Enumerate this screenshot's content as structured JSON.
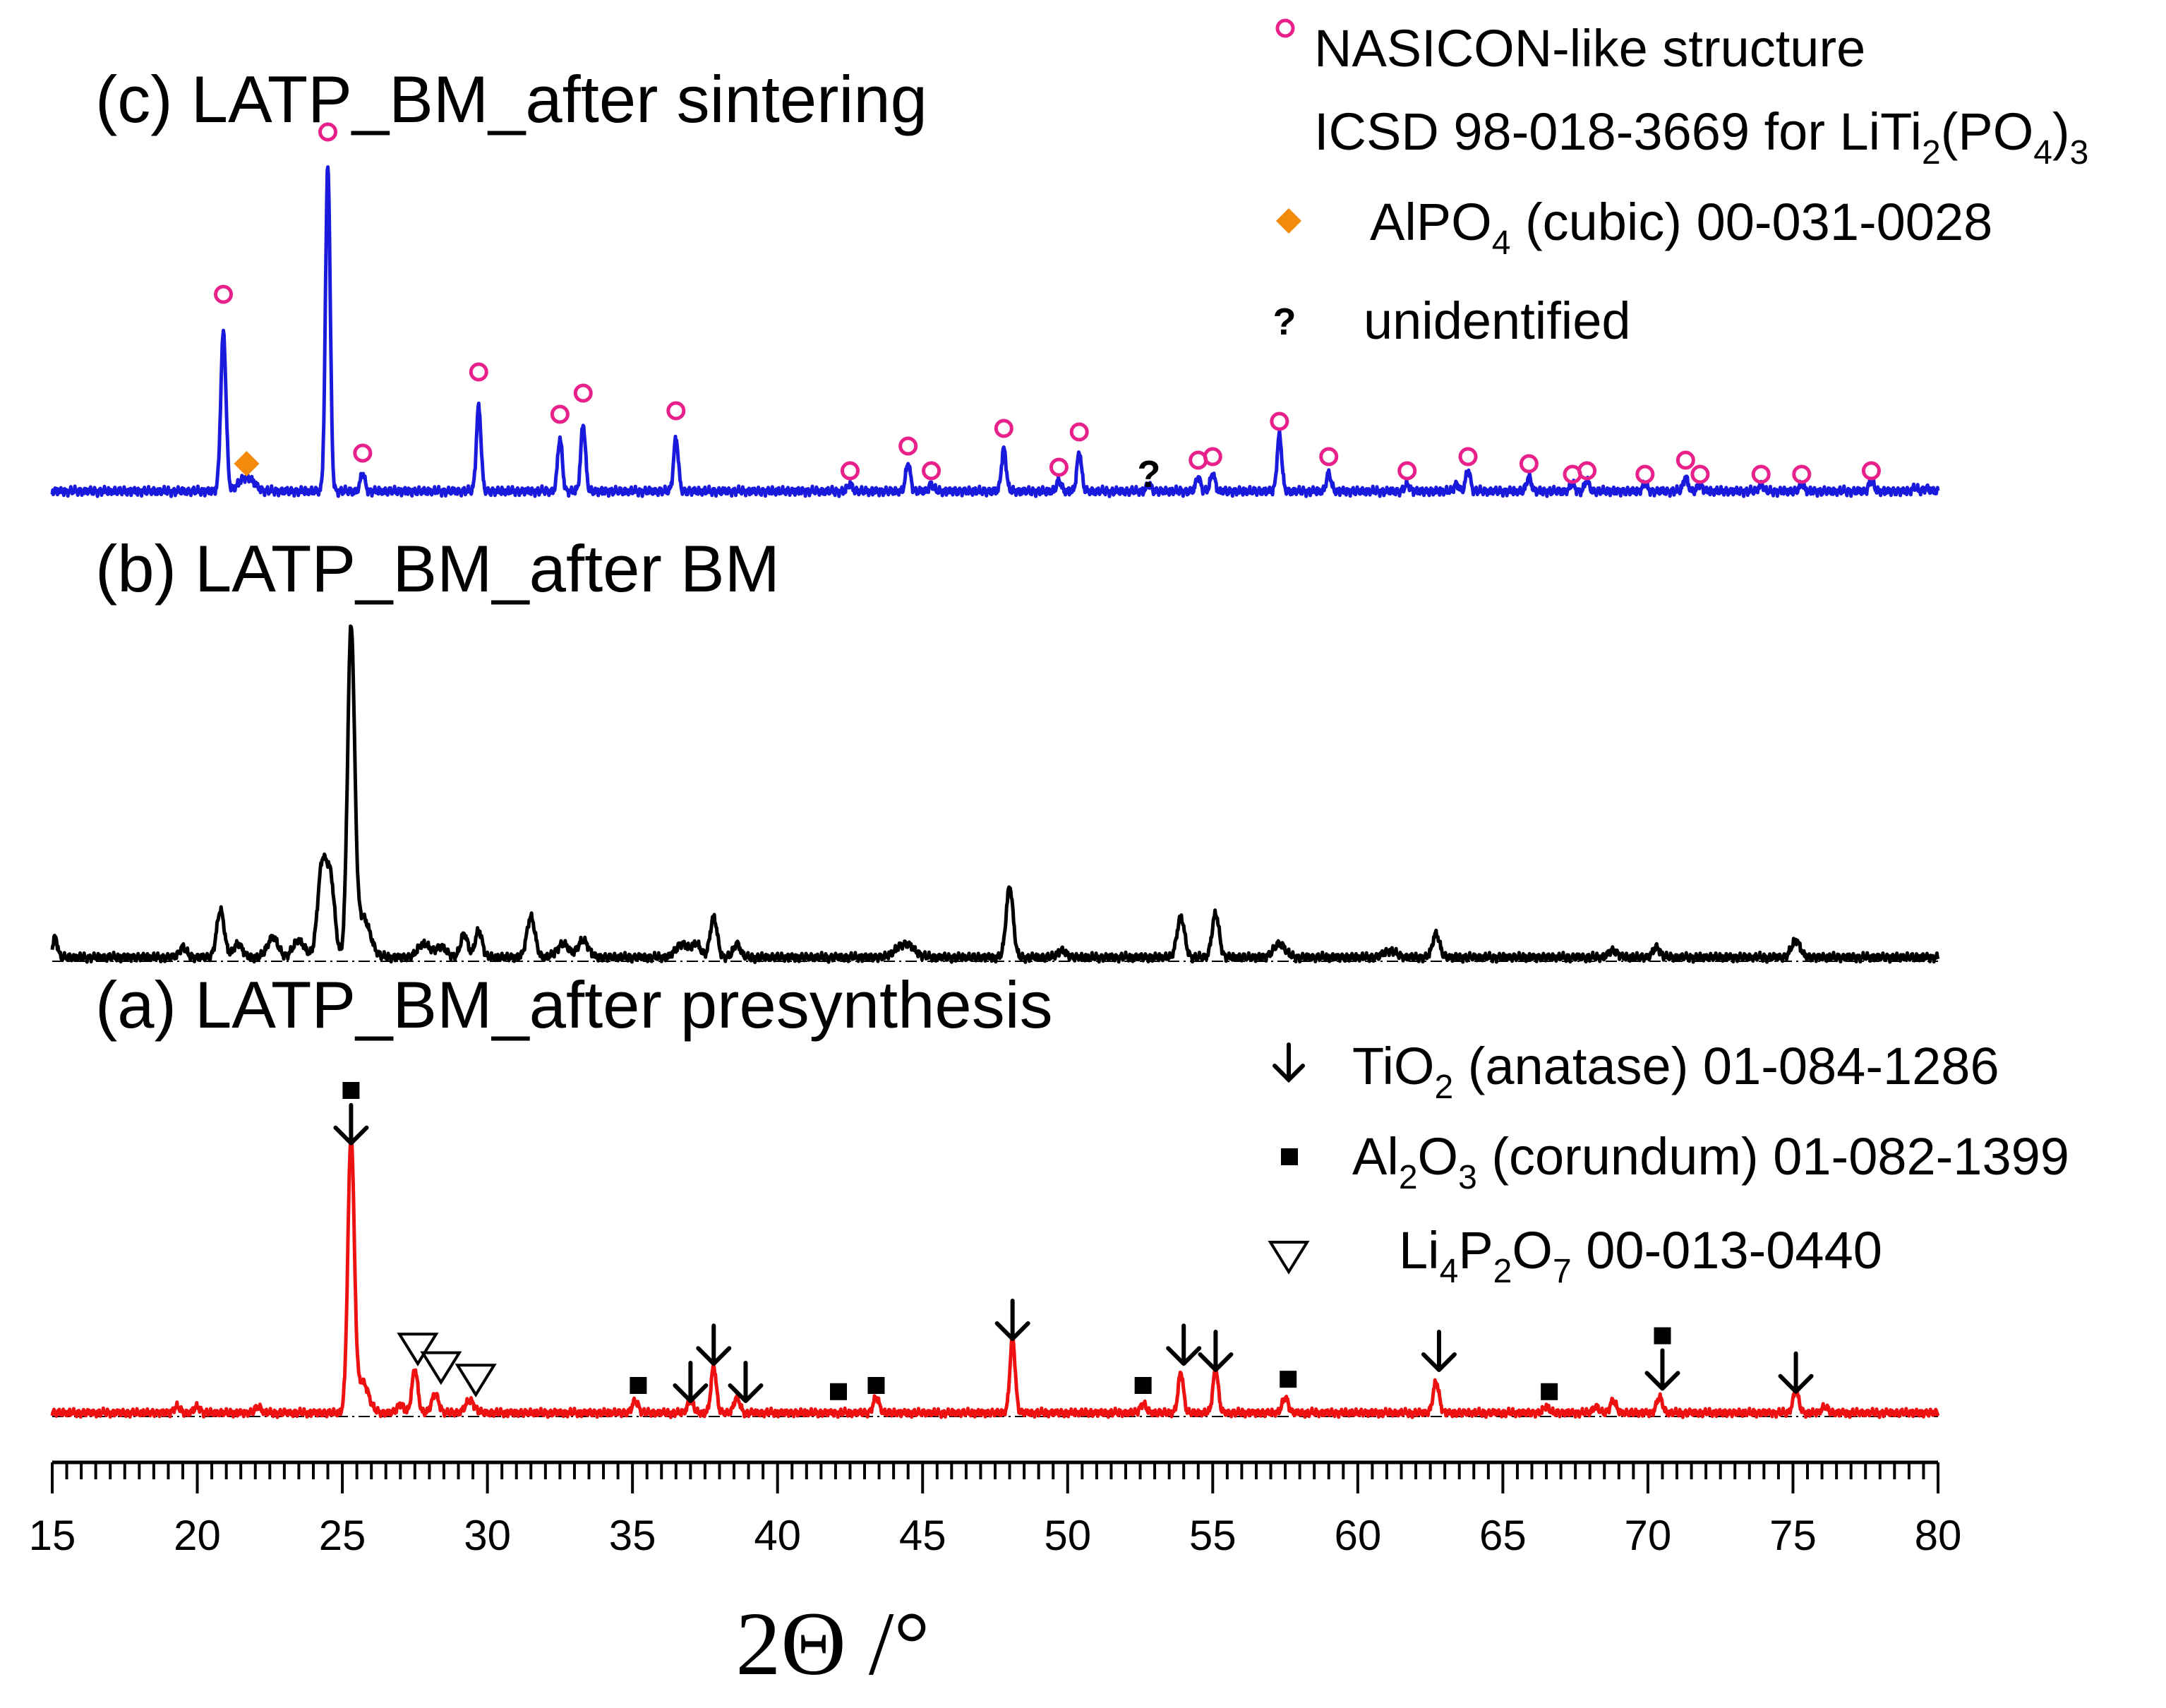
{
  "chart_data": {
    "type": "line",
    "title": "",
    "xlabel": "2Θ /°",
    "ylabel": "",
    "xlim": [
      15,
      80
    ],
    "xticks": [
      15,
      20,
      25,
      30,
      35,
      40,
      45,
      50,
      55,
      60,
      65,
      70,
      75,
      80
    ],
    "colors": {
      "c": "#1a1adc",
      "b": "#000000",
      "a": "#ee1111",
      "nasicon": "#e8208a",
      "alpo4": "#f28a0c"
    },
    "panels": [
      {
        "key": "c",
        "title": "(c) LATP_BM_after sintering",
        "color": "#1a1adc",
        "peaks": [
          {
            "x": 20.9,
            "h": 0.45,
            "w": 0.09
          },
          {
            "x": 21.7,
            "h": 0.04,
            "w": 0.25
          },
          {
            "x": 24.5,
            "h": 0.93,
            "w": 0.08
          },
          {
            "x": 25.7,
            "h": 0.05,
            "w": 0.08
          },
          {
            "x": 29.7,
            "h": 0.24,
            "w": 0.08
          },
          {
            "x": 32.5,
            "h": 0.15,
            "w": 0.08
          },
          {
            "x": 33.3,
            "h": 0.19,
            "w": 0.08
          },
          {
            "x": 36.5,
            "h": 0.15,
            "w": 0.08
          },
          {
            "x": 42.5,
            "h": 0.02,
            "w": 0.08
          },
          {
            "x": 44.5,
            "h": 0.08,
            "w": 0.08
          },
          {
            "x": 45.3,
            "h": 0.02,
            "w": 0.08
          },
          {
            "x": 47.8,
            "h": 0.12,
            "w": 0.08
          },
          {
            "x": 49.7,
            "h": 0.03,
            "w": 0.08
          },
          {
            "x": 50.4,
            "h": 0.11,
            "w": 0.08
          },
          {
            "x": 52.8,
            "h": 0.02,
            "w": 0.08
          },
          {
            "x": 54.5,
            "h": 0.04,
            "w": 0.08
          },
          {
            "x": 55.0,
            "h": 0.05,
            "w": 0.08
          },
          {
            "x": 57.3,
            "h": 0.16,
            "w": 0.08
          },
          {
            "x": 59.0,
            "h": 0.05,
            "w": 0.08
          },
          {
            "x": 61.7,
            "h": 0.02,
            "w": 0.08
          },
          {
            "x": 63.4,
            "h": 0.02,
            "w": 0.08
          },
          {
            "x": 63.8,
            "h": 0.06,
            "w": 0.08
          },
          {
            "x": 65.9,
            "h": 0.04,
            "w": 0.08
          },
          {
            "x": 67.4,
            "h": 0.02,
            "w": 0.08
          },
          {
            "x": 67.9,
            "h": 0.03,
            "w": 0.08
          },
          {
            "x": 69.9,
            "h": 0.02,
            "w": 0.08
          },
          {
            "x": 71.3,
            "h": 0.04,
            "w": 0.08
          },
          {
            "x": 71.8,
            "h": 0.02,
            "w": 0.08
          },
          {
            "x": 73.9,
            "h": 0.02,
            "w": 0.08
          },
          {
            "x": 75.3,
            "h": 0.02,
            "w": 0.08
          },
          {
            "x": 77.7,
            "h": 0.03,
            "w": 0.08
          },
          {
            "x": 79.2,
            "h": 0.01,
            "w": 0.08
          },
          {
            "x": 79.6,
            "h": 0.01,
            "w": 0.08
          }
        ],
        "markers": [
          {
            "x": 20.9,
            "t": "nasicon",
            "y": 0.57
          },
          {
            "x": 21.7,
            "t": "alpo4",
            "y": 0.09
          },
          {
            "x": 24.5,
            "t": "nasicon",
            "y": 1.03
          },
          {
            "x": 25.7,
            "t": "nasicon",
            "y": 0.12
          },
          {
            "x": 29.7,
            "t": "nasicon",
            "y": 0.35
          },
          {
            "x": 32.5,
            "t": "nasicon",
            "y": 0.23
          },
          {
            "x": 33.3,
            "t": "nasicon",
            "y": 0.29
          },
          {
            "x": 36.5,
            "t": "nasicon",
            "y": 0.24
          },
          {
            "x": 42.5,
            "t": "nasicon",
            "y": 0.07
          },
          {
            "x": 44.5,
            "t": "nasicon",
            "y": 0.14
          },
          {
            "x": 45.3,
            "t": "nasicon",
            "y": 0.07
          },
          {
            "x": 47.8,
            "t": "nasicon",
            "y": 0.19
          },
          {
            "x": 49.7,
            "t": "nasicon",
            "y": 0.08
          },
          {
            "x": 50.4,
            "t": "nasicon",
            "y": 0.18
          },
          {
            "x": 52.8,
            "t": "unidentified",
            "y": 0.06
          },
          {
            "x": 54.5,
            "t": "nasicon",
            "y": 0.1
          },
          {
            "x": 55.0,
            "t": "nasicon",
            "y": 0.11
          },
          {
            "x": 57.3,
            "t": "nasicon",
            "y": 0.21
          },
          {
            "x": 59.0,
            "t": "nasicon",
            "y": 0.11
          },
          {
            "x": 61.7,
            "t": "nasicon",
            "y": 0.07
          },
          {
            "x": 63.8,
            "t": "nasicon",
            "y": 0.11
          },
          {
            "x": 65.9,
            "t": "nasicon",
            "y": 0.09
          },
          {
            "x": 67.4,
            "t": "nasicon",
            "y": 0.06
          },
          {
            "x": 67.9,
            "t": "nasicon",
            "y": 0.07
          },
          {
            "x": 69.9,
            "t": "nasicon",
            "y": 0.06
          },
          {
            "x": 71.3,
            "t": "nasicon",
            "y": 0.1
          },
          {
            "x": 71.8,
            "t": "nasicon",
            "y": 0.06
          },
          {
            "x": 73.9,
            "t": "nasicon",
            "y": 0.06
          },
          {
            "x": 75.3,
            "t": "nasicon",
            "y": 0.06
          },
          {
            "x": 77.7,
            "t": "nasicon",
            "y": 0.07
          }
        ]
      },
      {
        "key": "b",
        "title": "(b) LATP_BM_after BM",
        "color": "#000000",
        "peaks": [
          {
            "x": 15.1,
            "h": 0.06,
            "w": 0.08
          },
          {
            "x": 19.5,
            "h": 0.03,
            "w": 0.12
          },
          {
            "x": 20.8,
            "h": 0.14,
            "w": 0.13
          },
          {
            "x": 21.4,
            "h": 0.04,
            "w": 0.15
          },
          {
            "x": 22.6,
            "h": 0.06,
            "w": 0.18
          },
          {
            "x": 23.5,
            "h": 0.05,
            "w": 0.2
          },
          {
            "x": 24.3,
            "h": 0.27,
            "w": 0.15
          },
          {
            "x": 24.6,
            "h": 0.22,
            "w": 0.14
          },
          {
            "x": 25.3,
            "h": 0.96,
            "w": 0.12
          },
          {
            "x": 25.7,
            "h": 0.12,
            "w": 0.25
          },
          {
            "x": 27.8,
            "h": 0.04,
            "w": 0.2
          },
          {
            "x": 28.4,
            "h": 0.03,
            "w": 0.2
          },
          {
            "x": 29.2,
            "h": 0.07,
            "w": 0.12
          },
          {
            "x": 29.7,
            "h": 0.08,
            "w": 0.12
          },
          {
            "x": 31.5,
            "h": 0.12,
            "w": 0.14
          },
          {
            "x": 32.6,
            "h": 0.04,
            "w": 0.2
          },
          {
            "x": 33.3,
            "h": 0.05,
            "w": 0.18
          },
          {
            "x": 36.7,
            "h": 0.04,
            "w": 0.2
          },
          {
            "x": 37.2,
            "h": 0.04,
            "w": 0.15
          },
          {
            "x": 37.8,
            "h": 0.12,
            "w": 0.12
          },
          {
            "x": 38.6,
            "h": 0.04,
            "w": 0.12
          },
          {
            "x": 44.4,
            "h": 0.04,
            "w": 0.3
          },
          {
            "x": 48.0,
            "h": 0.21,
            "w": 0.12
          },
          {
            "x": 49.8,
            "h": 0.02,
            "w": 0.15
          },
          {
            "x": 53.9,
            "h": 0.12,
            "w": 0.13
          },
          {
            "x": 55.1,
            "h": 0.13,
            "w": 0.12
          },
          {
            "x": 57.3,
            "h": 0.04,
            "w": 0.2
          },
          {
            "x": 61.1,
            "h": 0.02,
            "w": 0.2
          },
          {
            "x": 62.7,
            "h": 0.07,
            "w": 0.12
          },
          {
            "x": 68.8,
            "h": 0.02,
            "w": 0.15
          },
          {
            "x": 70.3,
            "h": 0.03,
            "w": 0.12
          },
          {
            "x": 75.1,
            "h": 0.05,
            "w": 0.15
          }
        ],
        "markers": []
      },
      {
        "key": "a",
        "title": "(a) LATP_BM_after presynthesis",
        "color": "#ee1111",
        "peaks": [
          {
            "x": 19.3,
            "h": 0.02,
            "w": 0.1
          },
          {
            "x": 20.0,
            "h": 0.02,
            "w": 0.1
          },
          {
            "x": 22.1,
            "h": 0.02,
            "w": 0.1
          },
          {
            "x": 25.3,
            "h": 0.88,
            "w": 0.11
          },
          {
            "x": 25.7,
            "h": 0.1,
            "w": 0.2
          },
          {
            "x": 27.0,
            "h": 0.03,
            "w": 0.1
          },
          {
            "x": 27.5,
            "h": 0.14,
            "w": 0.1
          },
          {
            "x": 28.2,
            "h": 0.06,
            "w": 0.12
          },
          {
            "x": 29.4,
            "h": 0.04,
            "w": 0.15
          },
          {
            "x": 35.1,
            "h": 0.04,
            "w": 0.1
          },
          {
            "x": 37.0,
            "h": 0.04,
            "w": 0.1
          },
          {
            "x": 37.8,
            "h": 0.15,
            "w": 0.09
          },
          {
            "x": 38.6,
            "h": 0.05,
            "w": 0.1
          },
          {
            "x": 43.4,
            "h": 0.05,
            "w": 0.1
          },
          {
            "x": 48.1,
            "h": 0.24,
            "w": 0.09
          },
          {
            "x": 52.6,
            "h": 0.03,
            "w": 0.1
          },
          {
            "x": 53.9,
            "h": 0.13,
            "w": 0.09
          },
          {
            "x": 55.1,
            "h": 0.14,
            "w": 0.09
          },
          {
            "x": 57.5,
            "h": 0.05,
            "w": 0.1
          },
          {
            "x": 62.7,
            "h": 0.1,
            "w": 0.1
          },
          {
            "x": 66.5,
            "h": 0.02,
            "w": 0.1
          },
          {
            "x": 68.2,
            "h": 0.02,
            "w": 0.1
          },
          {
            "x": 68.8,
            "h": 0.04,
            "w": 0.1
          },
          {
            "x": 70.4,
            "h": 0.05,
            "w": 0.1
          },
          {
            "x": 75.1,
            "h": 0.07,
            "w": 0.1
          },
          {
            "x": 76.1,
            "h": 0.02,
            "w": 0.1
          }
        ],
        "markers": [
          {
            "x": 25.3,
            "t": "al2o3",
            "y": 1.05
          },
          {
            "x": 25.3,
            "t": "tio2",
            "y": 0.93
          },
          {
            "x": 27.6,
            "t": "li4p2o7",
            "y": 0.22
          },
          {
            "x": 28.4,
            "t": "li4p2o7",
            "y": 0.16
          },
          {
            "x": 29.6,
            "t": "li4p2o7",
            "y": 0.12
          },
          {
            "x": 35.2,
            "t": "al2o3",
            "y": 0.1
          },
          {
            "x": 37.0,
            "t": "tio2",
            "y": 0.1
          },
          {
            "x": 37.8,
            "t": "tio2",
            "y": 0.22
          },
          {
            "x": 38.9,
            "t": "tio2",
            "y": 0.1
          },
          {
            "x": 42.1,
            "t": "al2o3",
            "y": 0.08
          },
          {
            "x": 43.4,
            "t": "al2o3",
            "y": 0.1
          },
          {
            "x": 48.1,
            "t": "tio2",
            "y": 0.3
          },
          {
            "x": 52.6,
            "t": "al2o3",
            "y": 0.1
          },
          {
            "x": 54.0,
            "t": "tio2",
            "y": 0.22
          },
          {
            "x": 55.1,
            "t": "tio2",
            "y": 0.2
          },
          {
            "x": 57.6,
            "t": "al2o3",
            "y": 0.12
          },
          {
            "x": 62.8,
            "t": "tio2",
            "y": 0.2
          },
          {
            "x": 66.6,
            "t": "al2o3",
            "y": 0.08
          },
          {
            "x": 70.5,
            "t": "al2o3",
            "y": 0.26
          },
          {
            "x": 70.5,
            "t": "tio2",
            "y": 0.14
          },
          {
            "x": 75.1,
            "t": "tio2",
            "y": 0.13
          }
        ]
      }
    ],
    "legend_top": {
      "nasicon_line1": "NASICON-like structure",
      "nasicon_line2_prefix": "ICSD 98-018-3669 for LiTi",
      "nasicon_sub_2": "2",
      "nasicon_paren_po": "(PO",
      "nasicon_sub_4": "4",
      "nasicon_close": ")",
      "nasicon_sub_3": "3",
      "alpo4_prefix": "AlPO",
      "alpo4_sub": "4",
      "alpo4_suffix": " (cubic) 00-031-0028",
      "q_symbol": "?",
      "q_label": "unidentified"
    },
    "legend_bottom": {
      "tio2_prefix": "TiO",
      "tio2_sub": "2",
      "tio2_suffix": " (anatase) 01-084-1286",
      "al2o3_p1": "Al",
      "al2o3_s1": "2",
      "al2o3_p2": "O",
      "al2o3_s2": "3",
      "al2o3_suffix": " (corundum)  01-082-1399",
      "li_p1": "Li",
      "li_s1": "4",
      "li_p2": "P",
      "li_s2": "2",
      "li_p3": "O",
      "li_s3": "7",
      "li_suffix": " 00-013-0440"
    }
  }
}
